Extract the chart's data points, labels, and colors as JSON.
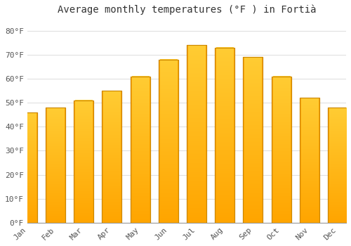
{
  "title": "Average monthly temperatures (°F ) in Fortià",
  "months": [
    "Jan",
    "Feb",
    "Mar",
    "Apr",
    "May",
    "Jun",
    "Jul",
    "Aug",
    "Sep",
    "Oct",
    "Nov",
    "Dec"
  ],
  "values": [
    46,
    48,
    51,
    55,
    61,
    68,
    74,
    73,
    69,
    61,
    52,
    48
  ],
  "bar_color_top": "#FFCC33",
  "bar_color_bottom": "#FFA500",
  "bar_edge_color": "#CC8800",
  "background_color": "#FFFFFF",
  "grid_color": "#E0E0E0",
  "yticks": [
    0,
    10,
    20,
    30,
    40,
    50,
    60,
    70,
    80
  ],
  "ylim": [
    0,
    85
  ],
  "title_fontsize": 10,
  "tick_fontsize": 8,
  "font_family": "monospace"
}
